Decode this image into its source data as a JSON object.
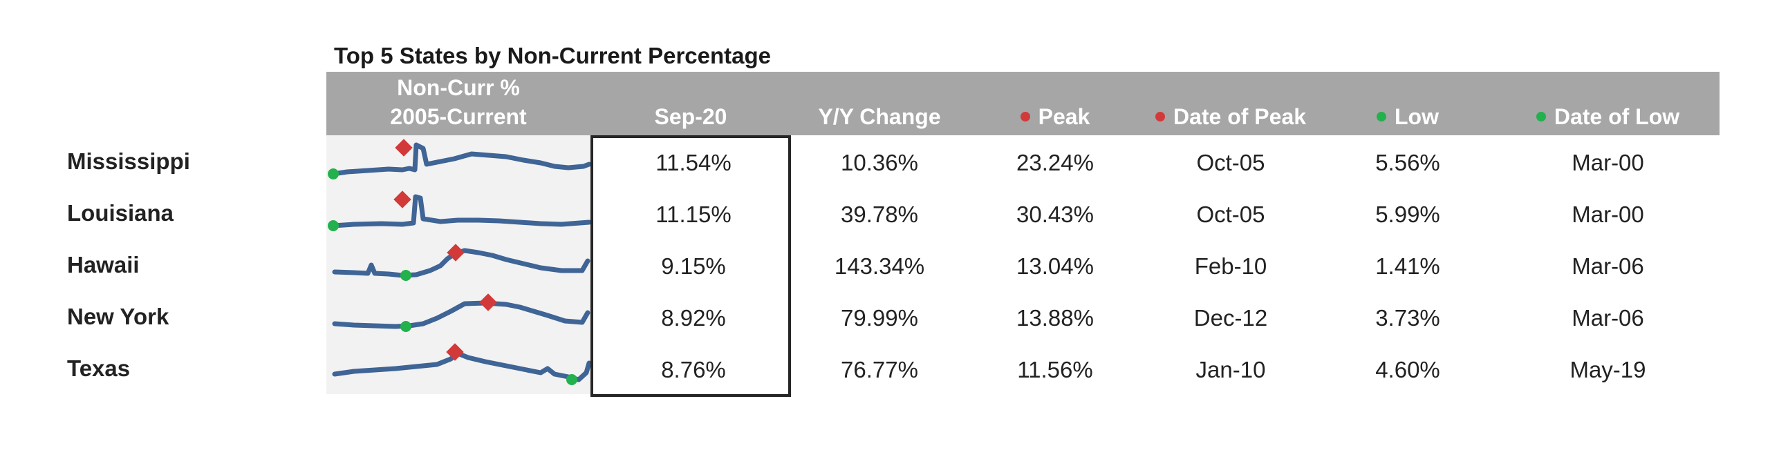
{
  "title": "Top 5 States by Non-Current Percentage",
  "headers": {
    "sparkline_line1": "Non-Curr %",
    "sparkline_line2": "2005-Current",
    "current": "Sep-20",
    "yoy": "Y/Y Change",
    "peak": "Peak",
    "date_of_peak": "Date of Peak",
    "low": "Low",
    "date_of_low": "Date of Low"
  },
  "colors": {
    "header_bg": "#a6a6a6",
    "peak_marker": "#d23a3a",
    "low_marker": "#22b14c",
    "sparkline": "#3f6496",
    "sparkline_bg": "#f2f2f2"
  },
  "rows": [
    {
      "state": "Mississippi",
      "current": "11.54%",
      "yoy": "10.36%",
      "peak": "23.24%",
      "date_of_peak": "Oct-05",
      "low": "5.56%",
      "date_of_low": "Mar-00"
    },
    {
      "state": "Louisiana",
      "current": "11.15%",
      "yoy": "39.78%",
      "peak": "30.43%",
      "date_of_peak": "Oct-05",
      "low": "5.99%",
      "date_of_low": "Mar-00"
    },
    {
      "state": "Hawaii",
      "current": "9.15%",
      "yoy": "143.34%",
      "peak": "13.04%",
      "date_of_peak": "Feb-10",
      "low": "1.41%",
      "date_of_low": "Mar-06"
    },
    {
      "state": "New York",
      "current": "8.92%",
      "yoy": "79.99%",
      "peak": "13.88%",
      "date_of_peak": "Dec-12",
      "low": "3.73%",
      "date_of_low": "Mar-06"
    },
    {
      "state": "Texas",
      "current": "8.76%",
      "yoy": "76.77%",
      "peak": "11.56%",
      "date_of_peak": "Jan-10",
      "low": "4.60%",
      "date_of_low": "May-19"
    }
  ]
}
